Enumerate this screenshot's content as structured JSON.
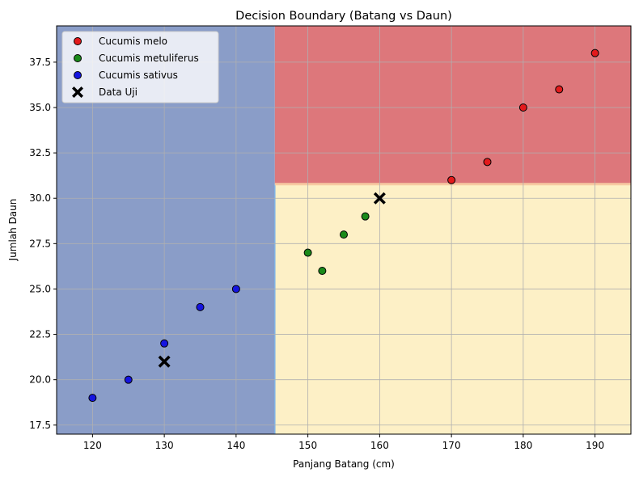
{
  "chart_data": {
    "type": "scatter",
    "title": "Decision Boundary (Batang vs Daun)",
    "xlabel": "Panjang Batang (cm)",
    "ylabel": "Jumlah Daun",
    "xlim": [
      115,
      195
    ],
    "ylim": [
      17,
      39.5
    ],
    "xticks": [
      120,
      130,
      140,
      150,
      160,
      170,
      180,
      190
    ],
    "yticks": [
      17.5,
      20.0,
      22.5,
      25.0,
      27.5,
      30.0,
      32.5,
      35.0,
      37.5
    ],
    "grid": true,
    "legend_position": "top-left",
    "regions": [
      {
        "name": "Cucumis sativus",
        "color": "#8a9dc8",
        "x_range": [
          115,
          145.4
        ],
        "y_range": [
          17,
          39.5
        ]
      },
      {
        "name": "Cucumis metuliferus",
        "color": "#fdf0c6",
        "x_range": [
          145.4,
          195
        ],
        "y_range": [
          17,
          30.8
        ]
      },
      {
        "name": "Cucumis melo",
        "color": "#dd777b",
        "x_range": [
          145.4,
          195
        ],
        "y_range": [
          30.8,
          39.5
        ]
      }
    ],
    "series": [
      {
        "name": "Cucumis melo",
        "color": "#e31a1c",
        "marker": "circle",
        "x": [
          170,
          175,
          180,
          185,
          190
        ],
        "y": [
          31,
          32,
          35,
          36,
          38
        ]
      },
      {
        "name": "Cucumis metuliferus",
        "color": "#1a8a1a",
        "marker": "circle",
        "x": [
          150,
          152,
          155,
          158
        ],
        "y": [
          27,
          26,
          28,
          29
        ]
      },
      {
        "name": "Cucumis sativus",
        "color": "#1515e0",
        "marker": "circle",
        "x": [
          120,
          125,
          130,
          135,
          140
        ],
        "y": [
          19,
          20,
          22,
          24,
          25
        ]
      },
      {
        "name": "Data Uji",
        "color": "#000000",
        "marker": "X",
        "x": [
          130,
          160
        ],
        "y": [
          21,
          30
        ]
      }
    ]
  }
}
